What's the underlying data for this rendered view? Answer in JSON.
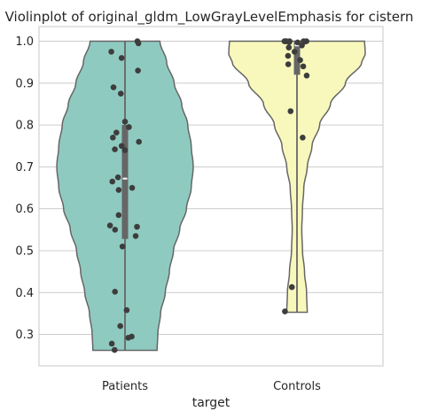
{
  "chart_data": {
    "type": "violin",
    "title": "Violinplot of original_gldm_LowGrayLevelEmphasis for cistern",
    "xlabel": "target",
    "ylabel": "",
    "ylim": [
      0.225,
      1.035
    ],
    "yticks": [
      0.3,
      0.4,
      0.5,
      0.6,
      0.7,
      0.8,
      0.9,
      1.0
    ],
    "grid": "horizontal",
    "groups": [
      {
        "name": "Patients",
        "color": "#8fcac0",
        "range": [
          0.262,
          1.0
        ],
        "median": 0.672,
        "q1": 0.528,
        "q3": 0.8,
        "density_y": [
          0.262,
          0.3,
          0.35,
          0.4,
          0.45,
          0.5,
          0.55,
          0.6,
          0.65,
          0.7,
          0.75,
          0.8,
          0.85,
          0.9,
          0.95,
          1.0
        ],
        "density_w": [
          0.47,
          0.48,
          0.52,
          0.59,
          0.65,
          0.71,
          0.8,
          0.9,
          0.97,
          1.0,
          0.97,
          0.92,
          0.83,
          0.72,
          0.61,
          0.51
        ],
        "points": [
          1.0,
          0.995,
          0.975,
          0.96,
          0.93,
          0.89,
          0.875,
          0.808,
          0.795,
          0.782,
          0.77,
          0.76,
          0.75,
          0.742,
          0.74,
          0.675,
          0.665,
          0.65,
          0.645,
          0.585,
          0.56,
          0.557,
          0.55,
          0.535,
          0.51,
          0.402,
          0.358,
          0.32,
          0.295,
          0.292,
          0.278,
          0.263
        ]
      },
      {
        "name": "Controls",
        "color": "#f8f8bc",
        "range": [
          0.353,
          1.0
        ],
        "median": 0.99,
        "q1": 0.92,
        "q3": 1.0,
        "density_y": [
          0.353,
          0.4,
          0.45,
          0.5,
          0.55,
          0.6,
          0.65,
          0.7,
          0.75,
          0.8,
          0.85,
          0.9,
          0.95,
          0.97,
          1.0
        ],
        "density_w": [
          0.15,
          0.14,
          0.11,
          0.08,
          0.07,
          0.08,
          0.1,
          0.15,
          0.22,
          0.33,
          0.49,
          0.71,
          0.95,
          1.0,
          0.99
        ],
        "points": [
          1.0,
          1.0,
          1.0,
          1.0,
          1.0,
          1.0,
          0.999,
          0.998,
          0.997,
          0.99,
          0.985,
          0.975,
          0.965,
          0.955,
          0.945,
          0.94,
          0.918,
          0.833,
          0.77,
          0.413,
          0.355
        ]
      }
    ]
  }
}
